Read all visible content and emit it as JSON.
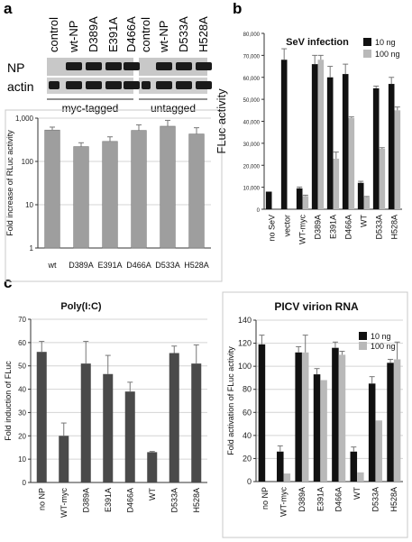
{
  "panel_labels": {
    "a": "a",
    "b": "b",
    "c": "c"
  },
  "blot": {
    "lane_labels": [
      "control",
      "wt-NP",
      "D389A",
      "E391A",
      "D466A",
      "control",
      "wt-NP",
      "D533A",
      "H528A"
    ],
    "row_labels": [
      "NP",
      "actin"
    ],
    "group_labels": [
      "myc-tagged",
      "untagged"
    ],
    "np_bands": [
      0,
      1,
      1,
      1,
      1,
      0,
      1,
      1,
      1
    ],
    "colors": {
      "band": "#1a1a1a",
      "membrane": "#c8c8c8"
    }
  },
  "chart_data": [
    {
      "panel": "a",
      "type": "bar",
      "categories": [
        "wt",
        "D389A",
        "E391A",
        "D466A",
        "D533A",
        "H528A"
      ],
      "series": [
        {
          "values": [
            530,
            220,
            290,
            520,
            650,
            430
          ],
          "errors": [
            90,
            50,
            80,
            180,
            240,
            170
          ],
          "color": "#9e9e9e"
        }
      ],
      "ylabel": "Fold increase of RLuc activity",
      "yscale": "log",
      "ylim": [
        1,
        1000
      ],
      "yticks": [
        "1",
        "10",
        "100",
        "1,000"
      ],
      "grid": true
    },
    {
      "panel": "b",
      "type": "bar",
      "title": "SeV infection",
      "categories": [
        "no SeV",
        "vector",
        "WT-myc",
        "D389A",
        "E391A",
        "D466A",
        "WT",
        "D533A",
        "H528A"
      ],
      "series": [
        {
          "name": "10 ng",
          "values": [
            8000,
            68000,
            9500,
            66000,
            60000,
            61500,
            12000,
            55000,
            57000
          ],
          "errors": [
            0,
            5000,
            600,
            4000,
            5000,
            4500,
            700,
            1000,
            3000
          ],
          "color": "#111111"
        },
        {
          "name": "100 ng",
          "values": [
            null,
            null,
            6000,
            68000,
            23000,
            41500,
            5500,
            27500,
            45000
          ],
          "errors": [
            0,
            0,
            400,
            2000,
            3000,
            500,
            300,
            500,
            1500
          ],
          "color": "#b9b9b9"
        }
      ],
      "ylabel": "FLuc activity",
      "ylim": [
        0,
        80000
      ],
      "yticks": [
        "0",
        "10,000",
        "20,000",
        "30,000",
        "40,000",
        "50,000",
        "60,000",
        "70,000",
        "80,000"
      ],
      "legend": "top-right"
    },
    {
      "panel": "c",
      "type": "bar",
      "title": "Poly(I:C)",
      "categories": [
        "no NP",
        "WT-myc",
        "D389A",
        "E391A",
        "D466A",
        "WT",
        "D533A",
        "H528A"
      ],
      "series": [
        {
          "values": [
            56,
            20,
            51,
            46.5,
            39,
            13,
            55.5,
            51
          ],
          "errors": [
            4.5,
            5.5,
            9.5,
            8,
            4,
            0.3,
            3,
            8
          ],
          "color": "#4a4a4a"
        }
      ],
      "ylabel": "Fold induction of FLuc",
      "ylim": [
        0,
        70
      ],
      "yticks": [
        "0",
        "10",
        "20",
        "30",
        "40",
        "50",
        "60",
        "70"
      ],
      "grid": true
    },
    {
      "panel": "c-right",
      "type": "bar",
      "title": "PICV virion RNA",
      "categories": [
        "no NP",
        "WT-myc",
        "D389A",
        "E391A",
        "D466A",
        "WT",
        "D533A",
        "H528A"
      ],
      "series": [
        {
          "name": "10 ng",
          "values": [
            119,
            26,
            112,
            93,
            116,
            26,
            85,
            103
          ],
          "errors": [
            8,
            5,
            5,
            5,
            5,
            4,
            6,
            3
          ],
          "color": "#111111"
        },
        {
          "name": "100 ng",
          "values": [
            null,
            7,
            112,
            88,
            110,
            8,
            53,
            106
          ],
          "errors": [
            0,
            0,
            15,
            0,
            3,
            0,
            0,
            15
          ],
          "color": "#b9b9b9"
        }
      ],
      "ylabel": "Fold activation of FLuc activity",
      "ylim": [
        0,
        140
      ],
      "yticks": [
        "0",
        "20",
        "40",
        "60",
        "80",
        "100",
        "120",
        "140"
      ],
      "grid": true,
      "legend": "top-right"
    }
  ]
}
